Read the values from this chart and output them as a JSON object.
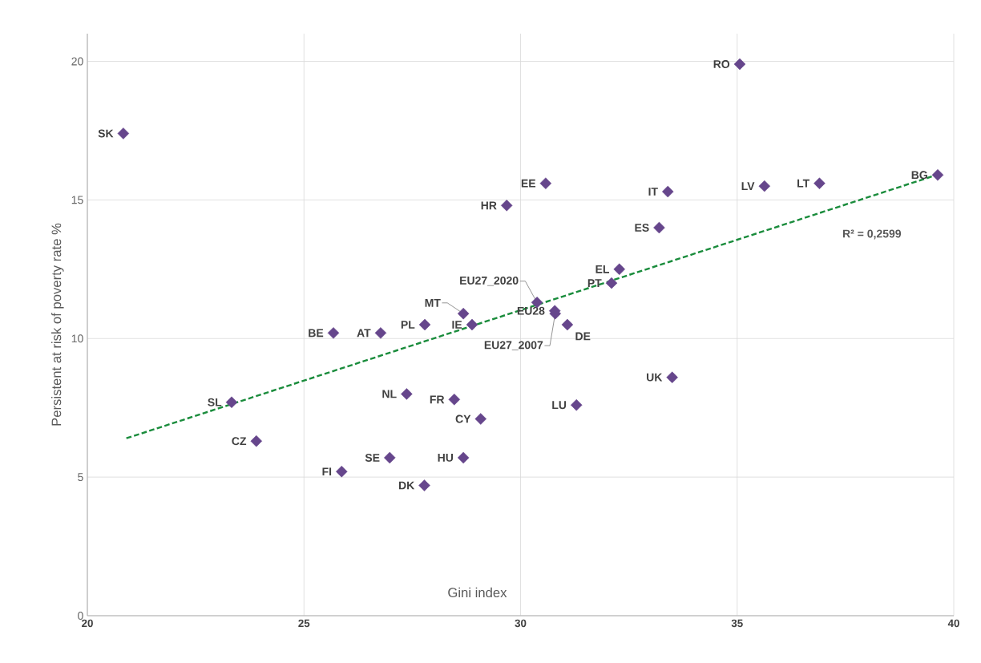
{
  "chart_data": {
    "type": "scatter",
    "xlabel": "Gini index",
    "ylabel": "Persistent at risk of poverty rate %",
    "xlim": [
      20,
      40
    ],
    "ylim": [
      0,
      21
    ],
    "xticks": [
      20,
      25,
      30,
      35,
      40
    ],
    "yticks": [
      0,
      5,
      10,
      15,
      20
    ],
    "grid": true,
    "series": [
      {
        "type": "scatter",
        "marker": "diamond",
        "color": "#66468c",
        "x": [
          20.83,
          35.06,
          30.58,
          29.68,
          33.4,
          35.63,
          36.9,
          39.63,
          33.2,
          32.28,
          32.1,
          30.38,
          30.79,
          30.8,
          31.08,
          28.68,
          28.88,
          27.79,
          26.77,
          25.68,
          33.5,
          27.37,
          28.47,
          31.29,
          29.08,
          23.33,
          23.9,
          26.98,
          28.68,
          25.87,
          27.78
        ],
        "values": [
          17.4,
          19.9,
          15.6,
          14.8,
          15.3,
          15.5,
          15.6,
          15.9,
          14.0,
          12.5,
          12.0,
          11.3,
          11.0,
          10.9,
          10.5,
          10.9,
          10.5,
          10.5,
          10.2,
          10.2,
          8.6,
          8.0,
          7.8,
          7.6,
          7.1,
          7.7,
          6.3,
          5.7,
          5.7,
          5.2,
          4.7
        ]
      },
      {
        "type": "line",
        "line_style": "dashed",
        "color": "#1a8c3c",
        "x": [
          20.9,
          39.6
        ],
        "values": [
          6.4,
          15.9
        ]
      }
    ],
    "annotations": [
      {
        "text": "SK",
        "x": 20.83,
        "y": 17.4
      },
      {
        "text": "RO",
        "x": 35.06,
        "y": 19.9
      },
      {
        "text": "EE",
        "x": 30.58,
        "y": 15.6
      },
      {
        "text": "HR",
        "x": 29.68,
        "y": 14.8
      },
      {
        "text": "IT",
        "x": 33.4,
        "y": 15.3
      },
      {
        "text": "LV",
        "x": 35.63,
        "y": 15.5
      },
      {
        "text": "LT",
        "x": 36.9,
        "y": 15.6
      },
      {
        "text": "BG",
        "x": 39.63,
        "y": 15.9
      },
      {
        "text": "ES",
        "x": 33.2,
        "y": 14.0
      },
      {
        "text": "EL",
        "x": 32.28,
        "y": 12.5
      },
      {
        "text": "PT",
        "x": 32.1,
        "y": 12.0
      },
      {
        "text": "EU27_2020",
        "x": 30.38,
        "y": 11.3
      },
      {
        "text": "EU28",
        "x": 30.79,
        "y": 11.0
      },
      {
        "text": "EU27_2007",
        "x": 30.8,
        "y": 10.9
      },
      {
        "text": "DE",
        "x": 31.08,
        "y": 10.5
      },
      {
        "text": "MT",
        "x": 28.68,
        "y": 10.9
      },
      {
        "text": "IE",
        "x": 28.88,
        "y": 10.5
      },
      {
        "text": "PL",
        "x": 27.79,
        "y": 10.5
      },
      {
        "text": "AT",
        "x": 26.77,
        "y": 10.2
      },
      {
        "text": "BE",
        "x": 25.68,
        "y": 10.2
      },
      {
        "text": "UK",
        "x": 33.5,
        "y": 8.6
      },
      {
        "text": "NL",
        "x": 27.37,
        "y": 8.0
      },
      {
        "text": "FR",
        "x": 28.47,
        "y": 7.8
      },
      {
        "text": "LU",
        "x": 31.29,
        "y": 7.6
      },
      {
        "text": "CY",
        "x": 29.08,
        "y": 7.1
      },
      {
        "text": "SL",
        "x": 23.33,
        "y": 7.7
      },
      {
        "text": "CZ",
        "x": 23.9,
        "y": 6.3
      },
      {
        "text": "SE",
        "x": 26.98,
        "y": 5.7
      },
      {
        "text": "HU",
        "x": 28.68,
        "y": 5.7
      },
      {
        "text": "FI",
        "x": 25.87,
        "y": 5.2
      },
      {
        "text": "DK",
        "x": 27.78,
        "y": 4.7
      },
      "R² = 0,2599"
    ]
  }
}
